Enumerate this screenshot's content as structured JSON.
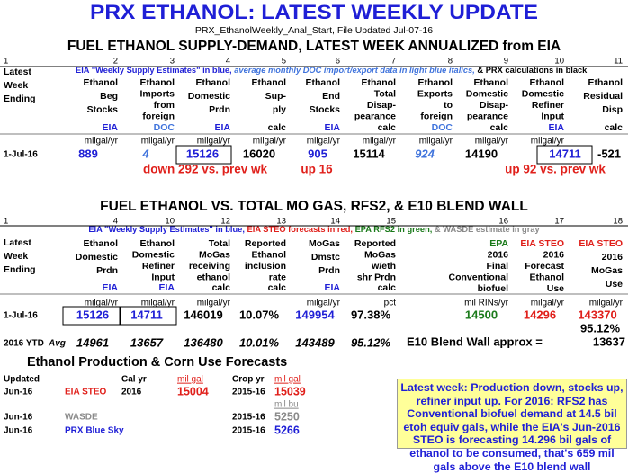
{
  "header": {
    "title": "PRX ETHANOL: LATEST WEEKLY UPDATE",
    "subtitle": "PRX_EthanolWeekly_Anal_Start, File Updated Jul-07-16"
  },
  "supply_demand": {
    "title": "FUEL ETHANOL SUPPLY-DEMAND, LATEST WEEK ANNUALIZED from EIA",
    "note": [
      "EIA \"Weekly Supply Estimates\" in blue,",
      "average monthly DOC import/export data in light blue italics,",
      "& PRX calculations in black"
    ],
    "columns": [
      {
        "number": 1,
        "header": [
          "Latest",
          "Week",
          "Ending"
        ],
        "value": "1-Jul-16"
      },
      {
        "number": 2,
        "header": [
          "Ethanol",
          "Beg",
          "Stocks"
        ],
        "source": "EIA",
        "unit": "milgal/yr",
        "value": 889
      },
      {
        "number": 3,
        "header": [
          "Ethanol",
          "Imports",
          "from",
          "foreign"
        ],
        "source": "DOC",
        "unit": "milgal/yr",
        "value": 4
      },
      {
        "number": 4,
        "header": [
          "Ethanol",
          "Domestic",
          "Prdn"
        ],
        "source": "EIA",
        "unit": "milgal/yr",
        "value": 15126
      },
      {
        "number": 5,
        "header": [
          "Ethanol",
          "Sup-",
          "ply"
        ],
        "source": "calc",
        "unit": "milgal/yr",
        "value": 16020
      },
      {
        "number": 6,
        "header": [
          "Ethanol",
          "End",
          "Stocks"
        ],
        "source": "EIA",
        "unit": "milgal/yr",
        "value": 905
      },
      {
        "number": 7,
        "header": [
          "Ethanol",
          "Total",
          "Disap-",
          "pearance"
        ],
        "source": "calc",
        "unit": "milgal/yr",
        "value": 15114
      },
      {
        "number": 8,
        "header": [
          "Ethanol",
          "Exports",
          "to",
          "foreign"
        ],
        "source": "DOC",
        "unit": "milgal/yr",
        "value": 924
      },
      {
        "number": 9,
        "header": [
          "Ethanol",
          "Domestic",
          "Disap-",
          "pearance"
        ],
        "source": "calc",
        "unit": "milgal/yr",
        "value": 14190
      },
      {
        "number": 10,
        "header": [
          "Ethanol",
          "Domestic",
          "Refiner",
          "Input"
        ],
        "source": "EIA",
        "unit": "milgal/yr",
        "value": 14711
      },
      {
        "number": 11,
        "header": [
          "Ethanol",
          "Residual",
          "Disp"
        ],
        "source": "calc",
        "value": -521
      }
    ],
    "changes": [
      "down 292 vs. prev wk",
      "up 16",
      "up 92 vs. prev wk"
    ]
  },
  "blend_wall": {
    "title": "FUEL ETHANOL VS. TOTAL MO GAS, RFS2, & E10 BLEND WALL",
    "legend": [
      "EIA \"Weekly Supply Estimates\" in blue,",
      "EIA STEO forecasts in red,",
      "EPA RFS2 in green,",
      "& WASDE estimate in gray"
    ],
    "columns": [
      {
        "number": 1,
        "header": [
          "Latest",
          "Week",
          "Ending"
        ],
        "value": "1-Jul-16",
        "ytd": [
          "2016 YTD",
          "Avg"
        ]
      },
      {
        "number": 4,
        "header": [
          "Ethanol",
          "Domestic",
          "Prdn"
        ],
        "source": "EIA",
        "unit": "milgal/yr",
        "value": 15126,
        "ytd": 14961
      },
      {
        "number": 10,
        "header": [
          "Ethanol",
          "Domestic",
          "Refiner",
          "Input"
        ],
        "source": "EIA",
        "unit": "milgal/yr",
        "value": 14711,
        "ytd": 13657
      },
      {
        "number": 12,
        "header": [
          "Total",
          "MoGas",
          "receiving",
          "ethanol"
        ],
        "source": "calc",
        "unit": "milgal/yr",
        "value": 146019,
        "ytd": 136480
      },
      {
        "number": 13,
        "header": [
          "Reported",
          "Ethanol",
          "inclusion",
          "rate"
        ],
        "source": "calc",
        "value": "10.07%",
        "ytd": "10.01%"
      },
      {
        "number": 14,
        "header": [
          "MoGas",
          "Dmstc",
          "Prdn"
        ],
        "source": "EIA",
        "unit": "milgal/yr",
        "value": 149954,
        "ytd": 143489
      },
      {
        "number": 15,
        "header": [
          "Reported",
          "MoGas",
          "w/eth",
          "shr Prdn"
        ],
        "source": "calc",
        "unit": "pct",
        "value": "97.38%",
        "ytd": "95.12%"
      },
      {
        "number": 16,
        "header": [
          "EPA",
          "2016",
          "Final",
          "Conventional",
          "biofuel"
        ],
        "unit": "mil RINs/yr",
        "value": 14500
      },
      {
        "number": 17,
        "header": [
          "EIA STEO",
          "2016",
          "Forecast",
          "Ethanol",
          "Use"
        ],
        "unit": "milgal/yr",
        "value": 14296
      },
      {
        "number": 18,
        "header": [
          "EIA STEO",
          "2016",
          "MoGas",
          "Use"
        ],
        "unit": "milgal/yr",
        "value": 143370,
        "extra": "95.12%"
      }
    ],
    "e10_label": "E10 Blend Wall approx =",
    "e10_value": 13637
  },
  "forecasts": {
    "title": "Ethanol Production & Corn Use Forecasts",
    "headers": [
      "Updated",
      "Cal yr",
      "mil gal",
      "Crop yr",
      "mil gal"
    ],
    "unit_bu": "mil bu",
    "rows": [
      [
        "Jun-16",
        "EIA STEO",
        "2016",
        15004,
        "2015-16",
        15039
      ],
      [
        "Jun-16",
        "WASDE",
        null,
        null,
        "2015-16",
        5250
      ],
      [
        "Jun-16",
        "PRX Blue Sky",
        null,
        null,
        "2015-16",
        5266
      ]
    ]
  },
  "comment": "Latest week: Production down, stocks up, refiner input up. For 2016: RFS2 has Conventional biofuel demand at 14.5 bil etoh equiv gals, while the EIA's Jun-2016 STEO is forecasting 14.296 bil gals of ethanol to be consumed, that's 659 mil gals above the E10 blend wall"
}
